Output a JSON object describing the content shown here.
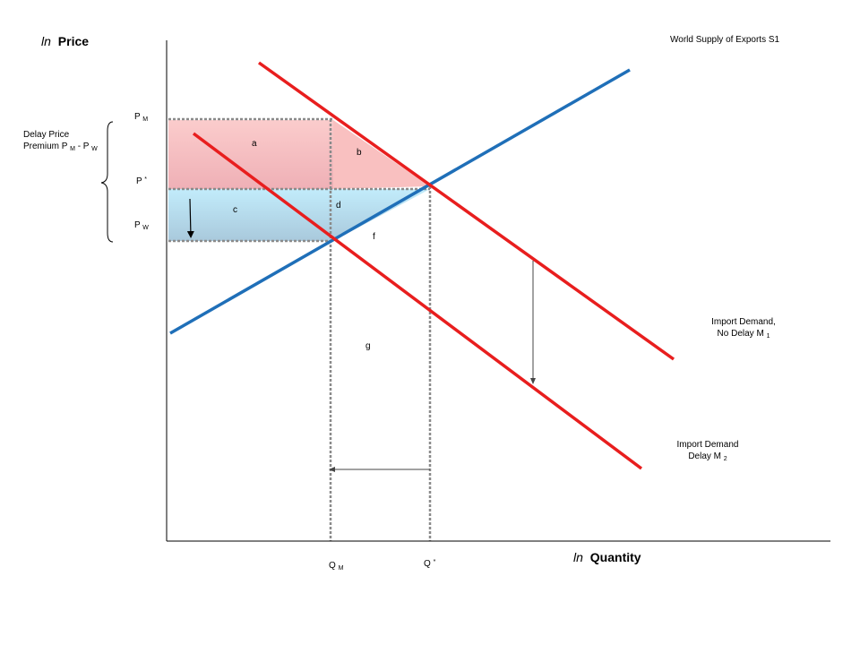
{
  "axes": {
    "y_title_italic": "ln",
    "y_title_bold": "Price",
    "x_title_italic": "ln",
    "x_title_bold": "Quantity"
  },
  "price_labels": {
    "pm_main": "P",
    "pm_sub": "M",
    "pstar_main": "P",
    "pstar_sup": "*",
    "pw_main": "P",
    "pw_sub": "W"
  },
  "quantity_labels": {
    "qm_main": "Q",
    "qm_sub": "M",
    "qstar_main": "Q",
    "qstar_sup": "*"
  },
  "premium_label": {
    "line1": "Delay Price",
    "line2_main": "Premium P",
    "line2_sub1": "M",
    "line2_mid": " -  P",
    "line2_sub2": "W"
  },
  "curve_labels": {
    "supply": "World Supply of Exports S1",
    "demand_no_delay_line1": "Import Demand,",
    "demand_no_delay_line2_main": "No Delay M",
    "demand_no_delay_line2_sub": "1",
    "demand_delay_line1": "Import Demand",
    "demand_delay_line2_main": "Delay M",
    "demand_delay_line2_sub": "2"
  },
  "regions": {
    "a": "a",
    "b": "b",
    "c": "c",
    "d": "d",
    "f": "f",
    "g": "g"
  },
  "colors": {
    "supply": "#1f6fb8",
    "demand": "#e81e1e",
    "pink_fill": "#f7b6b6",
    "blue_fill": "#b9e3f2",
    "dotted": "#8a8a8a",
    "axis": "#000000"
  }
}
